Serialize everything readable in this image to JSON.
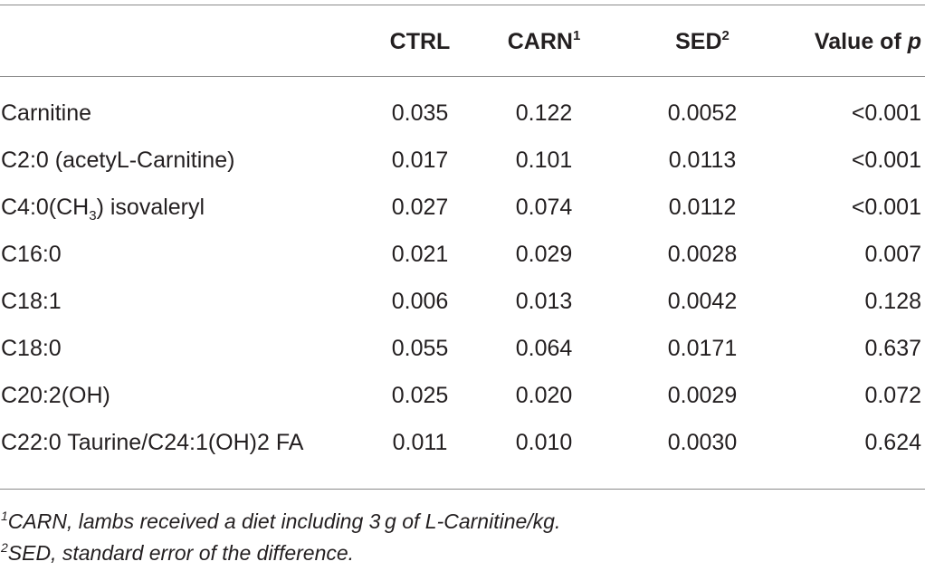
{
  "header": {
    "col1": "CTRL",
    "col2": "CARN",
    "col2_sup": "1",
    "col3": "SED",
    "col3_sup": "2",
    "col4_text": "Value of ",
    "col4_italic": "p"
  },
  "rows": [
    {
      "name": "Carnitine",
      "ctrl": "0.035",
      "carn": "0.122",
      "sed": "0.0052",
      "p": "<0.001"
    },
    {
      "name": "C2:0 (acetyL-Carnitine)",
      "ctrl": "0.017",
      "carn": "0.101",
      "sed": "0.0113",
      "p": "<0.001"
    },
    {
      "name_pre": "C4:0(CH",
      "name_sub": "3",
      "name_post": ") isovaleryl",
      "ctrl": "0.027",
      "carn": "0.074",
      "sed": "0.0112",
      "p": "<0.001"
    },
    {
      "name": "C16:0",
      "ctrl": "0.021",
      "carn": "0.029",
      "sed": "0.0028",
      "p": "0.007"
    },
    {
      "name": "C18:1",
      "ctrl": "0.006",
      "carn": "0.013",
      "sed": "0.0042",
      "p": "0.128"
    },
    {
      "name": "C18:0",
      "ctrl": "0.055",
      "carn": "0.064",
      "sed": "0.0171",
      "p": "0.637"
    },
    {
      "name": "C20:2(OH)",
      "ctrl": "0.025",
      "carn": "0.020",
      "sed": "0.0029",
      "p": "0.072"
    },
    {
      "name": "C22:0 Taurine/C24:1(OH)2 FA",
      "ctrl": "0.011",
      "carn": "0.010",
      "sed": "0.0030",
      "p": "0.624"
    }
  ],
  "footnotes": [
    {
      "mark": "1",
      "text": "CARN, lambs received a diet including 3 g of L-Carnitine/kg."
    },
    {
      "mark": "2",
      "text": "SED, standard error of the difference."
    }
  ]
}
